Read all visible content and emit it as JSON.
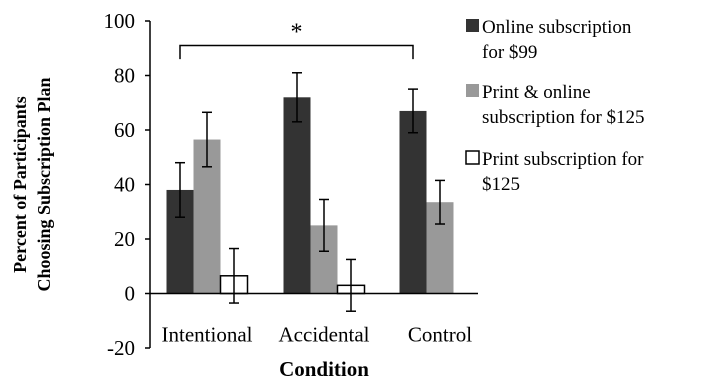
{
  "chart_data": {
    "type": "bar",
    "categories": [
      "Intentional",
      "Accidental",
      "Control"
    ],
    "series": [
      {
        "name": "Online subscription for $99",
        "legend_lines": [
          "Online subscription",
          "for $99"
        ],
        "color": "#333333",
        "values": [
          38,
          72,
          67
        ],
        "errors": [
          10,
          9,
          8
        ]
      },
      {
        "name": "Print & online subscription for $125",
        "legend_lines": [
          "Print & online",
          "subscription for $125"
        ],
        "color": "#999999",
        "values": [
          56.5,
          25,
          33.5
        ],
        "errors": [
          10,
          9.5,
          8
        ]
      },
      {
        "name": "Print subscription for $125",
        "legend_lines": [
          "Print subscription for",
          "$125"
        ],
        "color": "#ffffff",
        "values": [
          6.5,
          3,
          null
        ],
        "errors": [
          10,
          9.5,
          null
        ]
      }
    ],
    "xlabel": "Condition",
    "ylabel_lines": [
      "Percent of Participants",
      "Choosing Subscription Plan"
    ],
    "ylim": [
      -20,
      100
    ],
    "yticks": [
      -20,
      0,
      20,
      40,
      60,
      80,
      100
    ],
    "annotation": {
      "text": "*",
      "between": [
        "Intentional",
        "Control"
      ],
      "level": 91
    },
    "legend_position": "right",
    "grid": false
  }
}
